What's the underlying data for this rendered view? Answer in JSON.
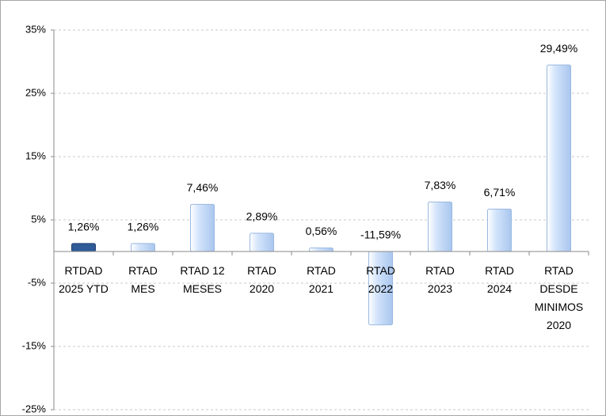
{
  "chart_data": {
    "type": "bar",
    "categories": [
      "RTDAD\n2025 YTD",
      "RTAD\nMES",
      "RTAD 12\nMESES",
      "RTAD\n2020",
      "RTAD\n2021",
      "RTAD\n2022",
      "RTAD\n2023",
      "RTAD\n2024",
      "RTAD\nDESDE\nMINIMOS\n2020"
    ],
    "values": [
      1.26,
      1.26,
      7.46,
      2.89,
      0.56,
      -11.59,
      7.83,
      6.71,
      29.49
    ],
    "value_labels": [
      "1,26%",
      "1,26%",
      "7,46%",
      "2,89%",
      "0,56%",
      "-11,59%",
      "7,83%",
      "6,71%",
      "29,49%"
    ],
    "colors": [
      "#2f5b98",
      "#d3e4fb",
      "#d3e4fb",
      "#d3e4fb",
      "#d3e4fb",
      "#d3e4fb",
      "#d3e4fb",
      "#d3e4fb",
      "#d3e4fb"
    ],
    "ylim": [
      -25,
      35
    ],
    "yticks": [
      {
        "value": -25,
        "label": "-25%"
      },
      {
        "value": -15,
        "label": "-15%"
      },
      {
        "value": -5,
        "label": "-5%"
      },
      {
        "value": 5,
        "label": "5%"
      },
      {
        "value": 15,
        "label": "15%"
      },
      {
        "value": 25,
        "label": "25%"
      },
      {
        "value": 35,
        "label": "35%"
      }
    ],
    "grid": true
  }
}
